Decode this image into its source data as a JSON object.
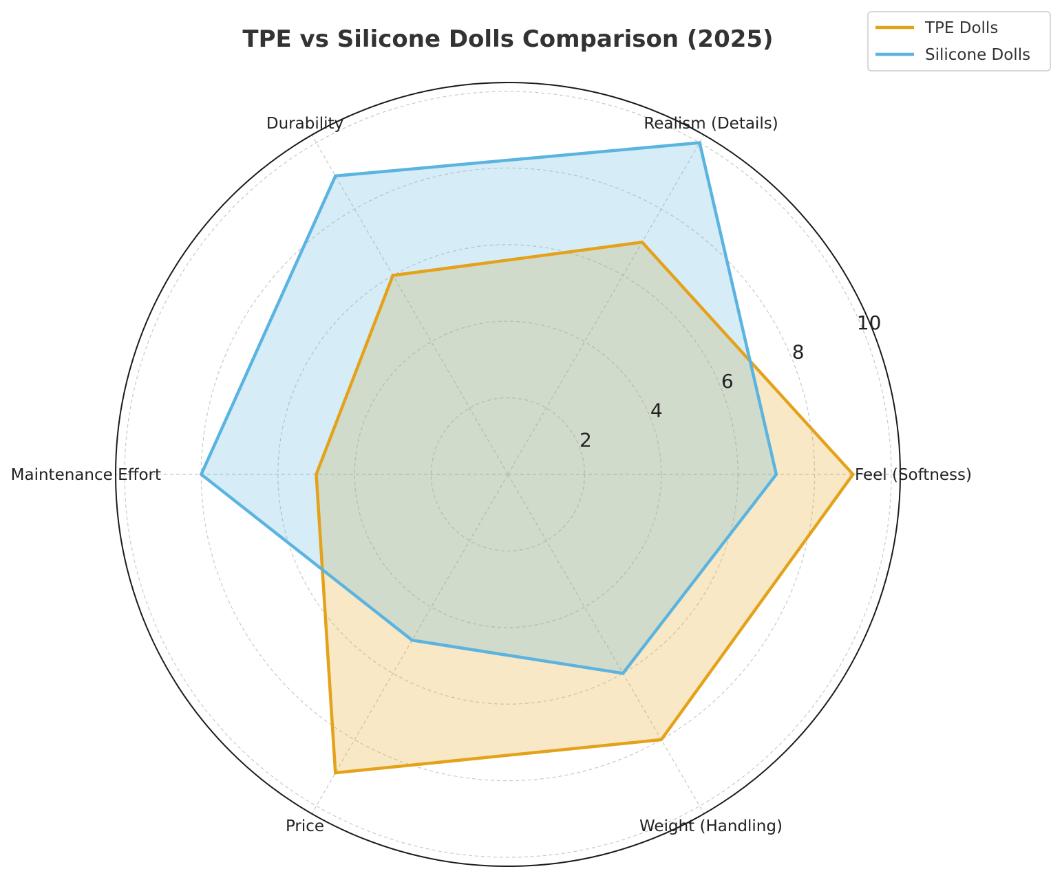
{
  "chart_data": {
    "type": "radar",
    "title": "TPE vs Silicone Dolls Comparison (2025)",
    "categories": [
      "Feel (Softness)",
      "Realism (Details)",
      "Durability",
      "Maintenance Effort",
      "Price",
      "Weight (Handling)"
    ],
    "r_ticks": [
      "2",
      "4",
      "6",
      "8",
      "10"
    ],
    "r_tick_values": [
      2,
      4,
      6,
      8,
      10
    ],
    "rlim": [
      0,
      10
    ],
    "grid": true,
    "legend_position": "top-right",
    "series": [
      {
        "name": "TPE Dolls",
        "color": "#E3A21A",
        "values": [
          9,
          7,
          6,
          5,
          9,
          8
        ]
      },
      {
        "name": "Silicone Dolls",
        "color": "#5BB4E0",
        "values": [
          7,
          10,
          9,
          8,
          5,
          6
        ]
      }
    ]
  }
}
